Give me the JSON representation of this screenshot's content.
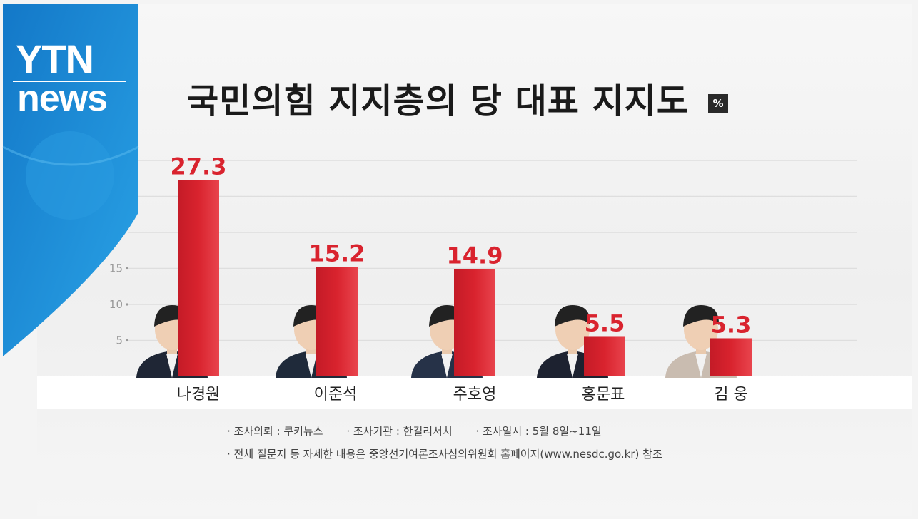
{
  "logo": {
    "line1": "YTN",
    "line2": "news"
  },
  "title": "국민의힘 지지층의 당 대표 지지도",
  "unit": "%",
  "chart_data": {
    "type": "bar",
    "title": "국민의힘 지지층의 당 대표 지지도",
    "unit": "%",
    "categories": [
      "나경원",
      "이준석",
      "주호영",
      "홍문표",
      "김 웅"
    ],
    "values": [
      27.3,
      15.2,
      14.9,
      5.5,
      5.3
    ],
    "value_labels": [
      "27.3",
      "15.2",
      "14.9",
      "5.5",
      "5.3"
    ],
    "yticks": [
      5,
      10,
      15
    ],
    "ylim": [
      0,
      30
    ],
    "grid": true,
    "bar_color": "#d9232e"
  },
  "footnotes": {
    "line1": [
      "· 조사의뢰 : 쿠키뉴스",
      "· 조사기관 : 한길리서치",
      "· 조사일시 : 5월 8일~11일"
    ],
    "line2": "· 전체 질문지 등 자세한 내용은 중앙선거여론조사심의위원회 홈페이지(www.nesdc.go.kr) 참조"
  },
  "colors": {
    "logo_blue": "#1e8fd6",
    "bar_red": "#d9232e",
    "label_red": "#d9232e"
  }
}
